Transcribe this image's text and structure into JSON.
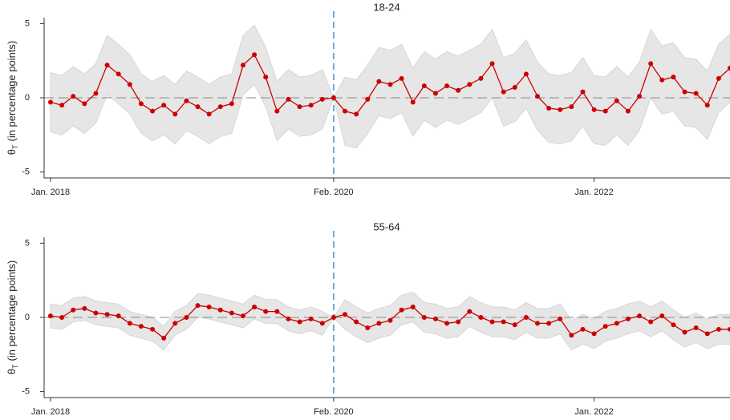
{
  "chart_data": [
    {
      "type": "line",
      "title": "18-24",
      "ylabel_symbol": "θ",
      "ylabel_sub": "T",
      "ylabel": "(in percentage points)",
      "x": [
        "2018-01",
        "2018-02",
        "2018-03",
        "2018-04",
        "2018-05",
        "2018-06",
        "2018-07",
        "2018-08",
        "2018-09",
        "2018-10",
        "2018-11",
        "2018-12",
        "2019-01",
        "2019-02",
        "2019-03",
        "2019-04",
        "2019-05",
        "2019-06",
        "2019-07",
        "2019-08",
        "2019-09",
        "2019-10",
        "2019-11",
        "2019-12",
        "2020-01",
        "2020-02",
        "2020-03",
        "2020-04",
        "2020-05",
        "2020-06",
        "2020-07",
        "2020-08",
        "2020-09",
        "2020-10",
        "2020-11",
        "2020-12",
        "2021-01",
        "2021-02",
        "2021-03",
        "2021-04",
        "2021-05",
        "2021-06",
        "2021-07",
        "2021-08",
        "2021-09",
        "2021-10",
        "2021-11",
        "2021-12",
        "2022-01",
        "2022-02",
        "2022-03",
        "2022-04",
        "2022-05",
        "2022-06",
        "2022-07",
        "2022-08",
        "2022-09",
        "2022-10",
        "2022-11",
        "2022-12",
        "2023-01"
      ],
      "values": [
        -0.3,
        -0.5,
        0.1,
        -0.4,
        0.3,
        2.2,
        1.6,
        0.9,
        -0.4,
        -0.9,
        -0.5,
        -1.1,
        -0.2,
        -0.6,
        -1.1,
        -0.6,
        -0.4,
        2.2,
        2.9,
        1.4,
        -0.9,
        -0.1,
        -0.6,
        -0.5,
        -0.1,
        0,
        -0.9,
        -1.1,
        -0.1,
        1.1,
        0.9,
        1.3,
        -0.3,
        0.8,
        0.3,
        0.8,
        0.5,
        0.9,
        1.3,
        2.3,
        0.4,
        0.7,
        1.6,
        0.1,
        -0.7,
        -0.8,
        -0.6,
        0.4,
        -0.8,
        -0.9,
        -0.2,
        -0.9,
        0.1,
        2.3,
        1.2,
        1.4,
        0.4,
        0.3,
        -0.5,
        1.3,
        2.0
      ],
      "ci_upper": [
        1.7,
        1.5,
        2.1,
        1.6,
        2.3,
        4.2,
        3.6,
        2.9,
        1.6,
        1.1,
        1.5,
        0.9,
        1.8,
        1.4,
        0.9,
        1.4,
        1.6,
        4.2,
        4.9,
        3.4,
        1.1,
        1.9,
        1.4,
        1.5,
        1.9,
        0,
        1.4,
        1.2,
        2.2,
        3.4,
        3.2,
        3.6,
        2.0,
        3.1,
        2.6,
        3.1,
        2.8,
        3.2,
        3.6,
        4.6,
        2.7,
        3.0,
        3.9,
        2.4,
        1.6,
        1.5,
        1.7,
        2.7,
        1.5,
        1.4,
        2.1,
        1.4,
        2.4,
        4.6,
        3.5,
        3.7,
        2.7,
        2.6,
        1.8,
        3.6,
        4.3
      ],
      "ci_lower": [
        -2.3,
        -2.5,
        -1.9,
        -2.4,
        -1.7,
        0.2,
        -0.4,
        -1.1,
        -2.4,
        -2.9,
        -2.5,
        -3.1,
        -2.2,
        -2.6,
        -3.1,
        -2.6,
        -2.4,
        0.2,
        0.9,
        -0.6,
        -2.9,
        -2.1,
        -2.6,
        -2.5,
        -2.1,
        0,
        -3.2,
        -3.4,
        -2.4,
        -1.2,
        -1.4,
        -1.0,
        -2.6,
        -1.5,
        -2.0,
        -1.5,
        -1.8,
        -1.4,
        -1.0,
        0.0,
        -1.9,
        -1.6,
        -0.7,
        -2.2,
        -3.0,
        -3.1,
        -2.9,
        -1.9,
        -3.1,
        -3.2,
        -2.5,
        -3.2,
        -2.2,
        0.0,
        -1.1,
        -0.9,
        -1.9,
        -2.0,
        -2.8,
        -1.0,
        -0.3
      ],
      "color": "#cc0000",
      "band_color": "#e6e6e6",
      "xlim": [
        "2018-01",
        "2023-01"
      ],
      "xticks": [
        {
          "value": "2018-01",
          "label": "Jan. 2018"
        },
        {
          "value": "2020-02",
          "label": "Feb. 2020"
        },
        {
          "value": "2022-01",
          "label": "Jan. 2022"
        }
      ],
      "ylim": [
        -5.4,
        5.4
      ],
      "yticks": [
        -5,
        0,
        5
      ],
      "hline": 0,
      "vline": "2020-02",
      "vline_color": "#6fa8dc"
    },
    {
      "type": "line",
      "title": "55-64",
      "ylabel_symbol": "θ",
      "ylabel_sub": "T",
      "ylabel": "(in percentage points)",
      "x": [
        "2018-01",
        "2018-02",
        "2018-03",
        "2018-04",
        "2018-05",
        "2018-06",
        "2018-07",
        "2018-08",
        "2018-09",
        "2018-10",
        "2018-11",
        "2018-12",
        "2019-01",
        "2019-02",
        "2019-03",
        "2019-04",
        "2019-05",
        "2019-06",
        "2019-07",
        "2019-08",
        "2019-09",
        "2019-10",
        "2019-11",
        "2019-12",
        "2020-01",
        "2020-02",
        "2020-03",
        "2020-04",
        "2020-05",
        "2020-06",
        "2020-07",
        "2020-08",
        "2020-09",
        "2020-10",
        "2020-11",
        "2020-12",
        "2021-01",
        "2021-02",
        "2021-03",
        "2021-04",
        "2021-05",
        "2021-06",
        "2021-07",
        "2021-08",
        "2021-09",
        "2021-10",
        "2021-11",
        "2021-12",
        "2022-01",
        "2022-02",
        "2022-03",
        "2022-04",
        "2022-05",
        "2022-06",
        "2022-07",
        "2022-08",
        "2022-09",
        "2022-10",
        "2022-11",
        "2022-12",
        "2023-01"
      ],
      "values": [
        0.1,
        0.0,
        0.5,
        0.6,
        0.3,
        0.2,
        0.1,
        -0.4,
        -0.6,
        -0.8,
        -1.4,
        -0.4,
        0.0,
        0.8,
        0.7,
        0.5,
        0.3,
        0.1,
        0.7,
        0.4,
        0.4,
        -0.1,
        -0.3,
        -0.1,
        -0.4,
        0,
        0.2,
        -0.3,
        -0.7,
        -0.4,
        -0.2,
        0.5,
        0.7,
        0.0,
        -0.1,
        -0.4,
        -0.3,
        0.4,
        0.0,
        -0.3,
        -0.3,
        -0.5,
        0.0,
        -0.4,
        -0.4,
        -0.1,
        -1.2,
        -0.8,
        -1.1,
        -0.6,
        -0.4,
        -0.1,
        0.1,
        -0.3,
        0.1,
        -0.5,
        -1.0,
        -0.7,
        -1.1,
        -0.8,
        -0.8
      ],
      "ci_upper": [
        0.9,
        0.8,
        1.3,
        1.4,
        1.1,
        1.0,
        0.9,
        0.4,
        0.2,
        0.0,
        -0.6,
        0.4,
        0.8,
        1.6,
        1.5,
        1.3,
        1.1,
        0.9,
        1.5,
        1.2,
        1.2,
        0.7,
        0.5,
        0.7,
        0.4,
        0,
        1.2,
        0.7,
        0.3,
        0.6,
        0.8,
        1.5,
        1.7,
        1.0,
        0.9,
        0.6,
        0.7,
        1.4,
        1.0,
        0.7,
        0.7,
        0.5,
        1.0,
        0.6,
        0.6,
        0.9,
        -0.2,
        0.2,
        -0.1,
        0.4,
        0.6,
        0.9,
        1.1,
        0.7,
        1.1,
        0.5,
        0.0,
        0.3,
        -0.1,
        0.2,
        0.2
      ],
      "ci_lower": [
        -0.7,
        -0.8,
        -0.3,
        -0.2,
        -0.5,
        -0.6,
        -0.7,
        -1.2,
        -1.4,
        -1.6,
        -2.2,
        -1.2,
        -0.8,
        0.0,
        -0.1,
        -0.3,
        -0.5,
        -0.7,
        -0.1,
        -0.4,
        -0.4,
        -0.9,
        -1.1,
        -0.9,
        -1.2,
        0,
        -0.8,
        -1.3,
        -1.7,
        -1.4,
        -1.2,
        -0.5,
        -0.3,
        -1.0,
        -1.1,
        -1.4,
        -1.3,
        -0.6,
        -1.0,
        -1.3,
        -1.3,
        -1.5,
        -1.0,
        -1.4,
        -1.4,
        -1.1,
        -2.2,
        -1.8,
        -2.1,
        -1.6,
        -1.4,
        -1.1,
        -0.9,
        -1.3,
        -0.9,
        -1.5,
        -2.0,
        -1.7,
        -2.1,
        -1.8,
        -1.8
      ],
      "color": "#cc0000",
      "band_color": "#e6e6e6",
      "xlim": [
        "2018-01",
        "2023-01"
      ],
      "xticks": [
        {
          "value": "2018-01",
          "label": "Jan. 2018"
        },
        {
          "value": "2020-02",
          "label": "Feb. 2020"
        },
        {
          "value": "2022-01",
          "label": "Jan. 2022"
        }
      ],
      "ylim": [
        -5.4,
        5.4
      ],
      "yticks": [
        -5,
        0,
        5
      ],
      "hline": 0,
      "vline": "2020-02",
      "vline_color": "#6fa8dc"
    }
  ]
}
